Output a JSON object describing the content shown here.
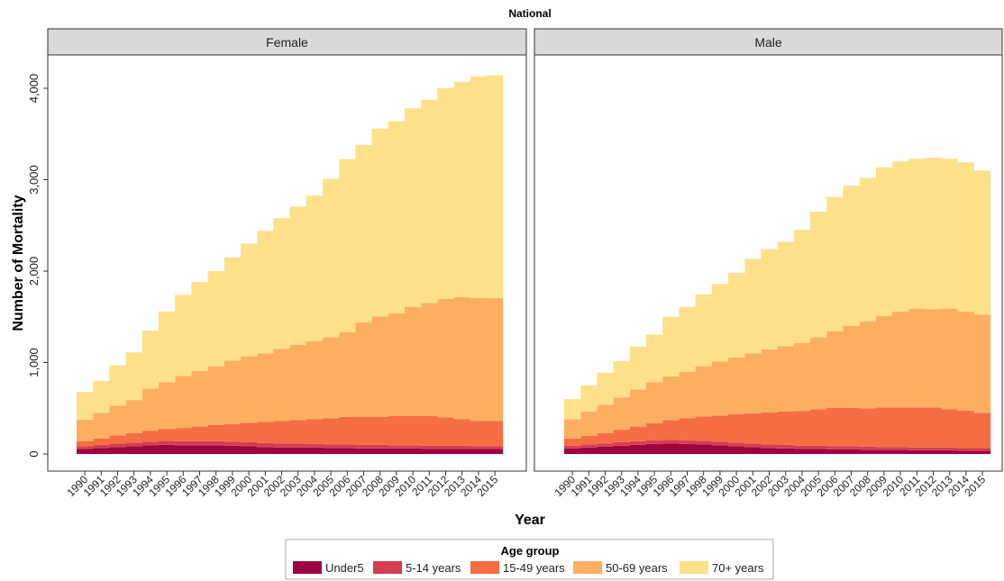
{
  "chart_data": {
    "type": "area",
    "stacked": true,
    "title": "National",
    "xlabel": "Year",
    "ylabel": "Number of Mortality",
    "ylim": [
      0,
      4300
    ],
    "yticks": [
      0,
      1000,
      2000,
      3000,
      4000
    ],
    "ytick_labels": [
      "0",
      "1,000",
      "2,000",
      "3,000",
      "4,000"
    ],
    "x": [
      "1990",
      "1991",
      "1992",
      "1993",
      "1994",
      "1995",
      "1996",
      "1997",
      "1998",
      "1999",
      "2000",
      "2001",
      "2002",
      "2003",
      "2004",
      "2005",
      "2006",
      "2007",
      "2008",
      "2009",
      "2010",
      "2011",
      "2012",
      "2013",
      "2014",
      "2015"
    ],
    "legend": {
      "title": "Age group",
      "position": "bottom",
      "entries": [
        "Under5",
        "5-14 years",
        "15-49 years",
        "50-69 years",
        "70+ years"
      ]
    },
    "colors": {
      "Under5": "#9e0142",
      "5-14 years": "#d53e4f",
      "15-49 years": "#f46d43",
      "50-69 years": "#fdae61",
      "70+ years": "#fee08b"
    },
    "grid": false,
    "panels": [
      {
        "name": "Female",
        "series": [
          {
            "name": "Under5",
            "values": [
              55,
              65,
              75,
              85,
              95,
              100,
              95,
              95,
              95,
              90,
              85,
              75,
              70,
              70,
              70,
              65,
              65,
              60,
              60,
              60,
              60,
              55,
              55,
              55,
              55,
              55
            ]
          },
          {
            "name": "5-14 years",
            "values": [
              30,
              35,
              40,
              40,
              40,
              45,
              45,
              45,
              45,
              45,
              45,
              45,
              45,
              45,
              40,
              40,
              40,
              40,
              40,
              35,
              35,
              35,
              35,
              35,
              30,
              30
            ]
          },
          {
            "name": "15-49 years",
            "values": [
              55,
              70,
              90,
              105,
              120,
              130,
              145,
              160,
              175,
              190,
              210,
              230,
              245,
              255,
              270,
              285,
              300,
              305,
              305,
              320,
              320,
              325,
              310,
              290,
              275,
              275
            ]
          },
          {
            "name": "50-69 years",
            "values": [
              235,
              280,
              325,
              360,
              460,
              510,
              570,
              610,
              645,
              695,
              730,
              750,
              790,
              825,
              855,
              885,
              925,
              1035,
              1100,
              1125,
              1195,
              1235,
              1295,
              1335,
              1345,
              1345
            ]
          },
          {
            "name": "70+ years",
            "values": [
              305,
              350,
              440,
              520,
              635,
              775,
              885,
              970,
              1040,
              1130,
              1230,
              1340,
              1430,
              1510,
              1590,
              1735,
              1895,
              1940,
              2055,
              2100,
              2170,
              2225,
              2305,
              2355,
              2425,
              2435
            ]
          }
        ]
      },
      {
        "name": "Male",
        "series": [
          {
            "name": "Under5",
            "values": [
              60,
              70,
              80,
              90,
              100,
              110,
              115,
              110,
              105,
              95,
              85,
              75,
              65,
              60,
              55,
              55,
              50,
              50,
              45,
              45,
              45,
              40,
              40,
              40,
              35,
              35
            ]
          },
          {
            "name": "5-14 years",
            "values": [
              30,
              35,
              35,
              40,
              40,
              40,
              40,
              40,
              40,
              40,
              40,
              40,
              40,
              40,
              35,
              35,
              35,
              35,
              35,
              30,
              30,
              30,
              30,
              30,
              30,
              30
            ]
          },
          {
            "name": "15-49 years",
            "values": [
              80,
              95,
              115,
              135,
              160,
              185,
              215,
              240,
              265,
              285,
              310,
              330,
              350,
              365,
              380,
              400,
              420,
              420,
              420,
              435,
              435,
              440,
              440,
              420,
              410,
              385
            ]
          },
          {
            "name": "50-69 years",
            "values": [
              210,
              265,
              310,
              355,
              405,
              450,
              480,
              510,
              550,
              590,
              620,
              655,
              690,
              715,
              745,
              785,
              835,
              895,
              950,
              1000,
              1050,
              1080,
              1075,
              1100,
              1085,
              1075
            ]
          },
          {
            "name": "70+ years",
            "values": [
              220,
              285,
              350,
              395,
              470,
              520,
              650,
              710,
              785,
              850,
              925,
              1035,
              1095,
              1140,
              1235,
              1375,
              1470,
              1535,
              1570,
              1625,
              1640,
              1640,
              1655,
              1640,
              1630,
              1575
            ]
          }
        ]
      }
    ]
  }
}
